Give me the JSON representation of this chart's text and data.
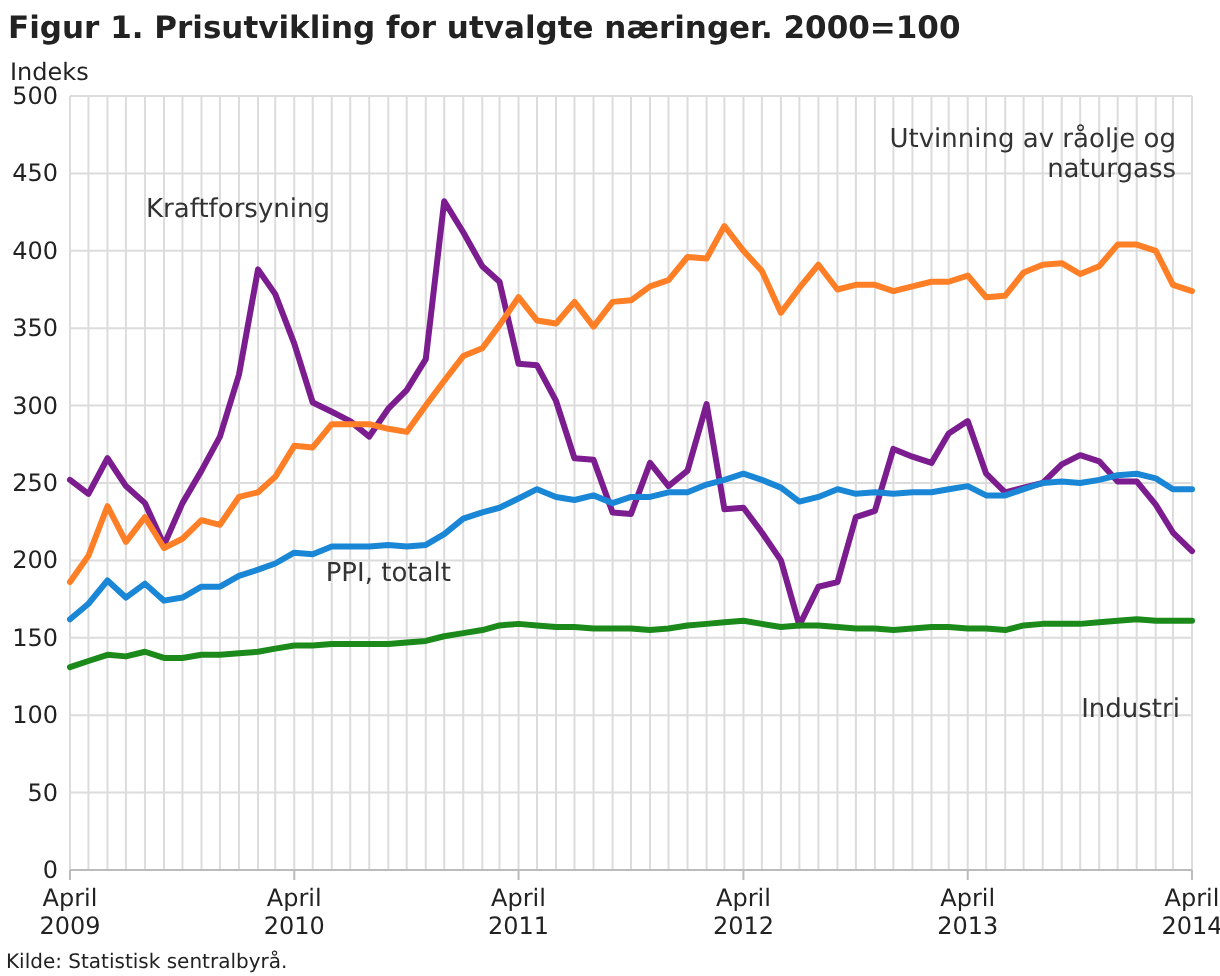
{
  "chart_data": {
    "type": "line",
    "title": "Figur 1. Prisutvikling for utvalgte næringer. 2000=100",
    "ylabel": "Indeks",
    "annotations": [
      "Kilde: Statistisk sentralbyrå."
    ],
    "x": [
      "2009-04",
      "2009-05",
      "2009-06",
      "2009-07",
      "2009-08",
      "2009-09",
      "2009-10",
      "2009-11",
      "2009-12",
      "2010-01",
      "2010-02",
      "2010-03",
      "2010-04",
      "2010-05",
      "2010-06",
      "2010-07",
      "2010-08",
      "2010-09",
      "2010-10",
      "2010-11",
      "2010-12",
      "2011-01",
      "2011-02",
      "2011-03",
      "2011-04",
      "2011-05",
      "2011-06",
      "2011-07",
      "2011-08",
      "2011-09",
      "2011-10",
      "2011-11",
      "2011-12",
      "2012-01",
      "2012-02",
      "2012-03",
      "2012-04",
      "2012-05",
      "2012-06",
      "2012-07",
      "2012-08",
      "2012-09",
      "2012-10",
      "2012-11",
      "2012-12",
      "2013-01",
      "2013-02",
      "2013-03",
      "2013-04",
      "2013-05",
      "2013-06",
      "2013-07",
      "2013-08",
      "2013-09",
      "2013-10",
      "2013-11",
      "2013-12",
      "2014-01",
      "2014-02",
      "2014-03",
      "2014-04"
    ],
    "series": [
      {
        "name": "Kraftforsyning",
        "color": "#7b1d8f",
        "values": [
          252,
          243,
          266,
          248,
          237,
          210,
          237,
          258,
          280,
          320,
          388,
          372,
          340,
          302,
          296,
          290,
          280,
          298,
          310,
          330,
          432,
          412,
          390,
          380,
          327,
          326,
          303,
          266,
          265,
          231,
          230,
          263,
          248,
          258,
          301,
          233,
          234,
          218,
          200,
          158,
          183,
          186,
          228,
          232,
          272,
          267,
          263,
          282,
          290,
          256,
          244,
          247,
          250,
          262,
          268,
          264,
          251,
          251,
          236,
          218,
          206
        ]
      },
      {
        "name": "Utvinning av råolje og naturgass",
        "color": "#ff7f27",
        "values": [
          186,
          203,
          235,
          212,
          228,
          208,
          214,
          226,
          223,
          241,
          244,
          254,
          274,
          273,
          288,
          288,
          288,
          285,
          283,
          300,
          316,
          332,
          337,
          352,
          370,
          355,
          353,
          367,
          351,
          367,
          368,
          377,
          381,
          396,
          395,
          416,
          400,
          387,
          360,
          376,
          391,
          375,
          378,
          378,
          374,
          377,
          380,
          380,
          384,
          370,
          371,
          386,
          391,
          392,
          385,
          390,
          404,
          404,
          400,
          378,
          374
        ]
      },
      {
        "name": "PPI, totalt",
        "color": "#1a87d6",
        "values": [
          162,
          172,
          187,
          176,
          185,
          174,
          176,
          183,
          183,
          190,
          194,
          198,
          205,
          204,
          209,
          209,
          209,
          210,
          209,
          210,
          217,
          227,
          231,
          234,
          240,
          246,
          241,
          239,
          242,
          237,
          241,
          241,
          244,
          244,
          249,
          252,
          256,
          252,
          247,
          238,
          241,
          246,
          243,
          244,
          243,
          244,
          244,
          246,
          248,
          242,
          242,
          246,
          250,
          251,
          250,
          252,
          255,
          256,
          253,
          246,
          246
        ]
      },
      {
        "name": "Industri",
        "color": "#1b8a1b",
        "values": [
          131,
          135,
          139,
          138,
          141,
          137,
          137,
          139,
          139,
          140,
          141,
          143,
          145,
          145,
          146,
          146,
          146,
          146,
          147,
          148,
          151,
          153,
          155,
          158,
          159,
          158,
          157,
          157,
          156,
          156,
          156,
          155,
          156,
          158,
          159,
          160,
          161,
          159,
          157,
          158,
          158,
          157,
          156,
          156,
          155,
          156,
          157,
          157,
          156,
          156,
          155,
          158,
          159,
          159,
          159,
          160,
          161,
          162,
          161,
          161,
          161
        ]
      }
    ],
    "xlim": [
      "2009-04",
      "2014-04"
    ],
    "xticks": [
      {
        "value": "2009-04",
        "label": "April 2009"
      },
      {
        "value": "2010-04",
        "label": "April 2010"
      },
      {
        "value": "2011-04",
        "label": "April 2011"
      },
      {
        "value": "2012-04",
        "label": "April 2012"
      },
      {
        "value": "2013-04",
        "label": "April 2013"
      },
      {
        "value": "2014-04",
        "label": "April 2014"
      }
    ],
    "ylim": [
      0,
      500
    ],
    "yticks": [
      0,
      50,
      100,
      150,
      200,
      250,
      300,
      350,
      400,
      450,
      500
    ],
    "grid": true,
    "marker": "none",
    "line_style": "solid"
  }
}
